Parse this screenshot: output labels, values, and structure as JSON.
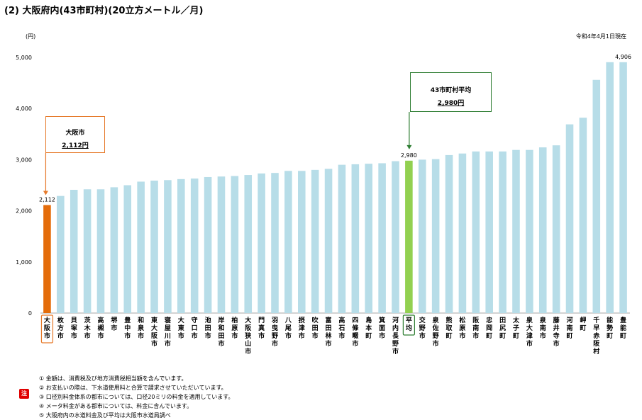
{
  "title": "(2) 大阪府内(43市町村)(20立方メートル／月)",
  "unit_label": "(円)",
  "as_of": "令和4年4月1日現在",
  "callout_osaka": {
    "line1": "大阪市",
    "line2": "2,112円"
  },
  "callout_avg": {
    "line1": "43市町村平均",
    "line2": "2,980円"
  },
  "notes_badge": "注",
  "notes": [
    "① 金額は、消費税及び地方消費税相当額を含んでいます。",
    "② お支払いの際は、下水道使用料と合算で請求させていただいています。",
    "③ 口径別料金体系の都市については、口径20ミリの料金を適用しています。",
    "④ メータ料金がある都市については、料金に含んでいます。",
    "⑤ 大阪府内の水道料金及び平均は大阪市水道局調べ"
  ],
  "colors": {
    "osaka": "#e46c0a",
    "average": "#92d050",
    "others": "#b7dde8",
    "osaka_box": "#e67a2b",
    "avg_box": "#2e7d32"
  },
  "chart_data": {
    "type": "bar",
    "title": "",
    "xlabel": "",
    "ylabel": "(円)",
    "ylim": [
      0,
      5000
    ],
    "yticks": [
      "0",
      "1,000",
      "2,000",
      "3,000",
      "4,000",
      "5,000"
    ],
    "grid": false,
    "categories": [
      "大阪市",
      "枚方市",
      "貝塚市",
      "茨木市",
      "高槻市",
      "堺市",
      "豊中市",
      "和泉市",
      "東大阪市",
      "寝屋川市",
      "大東市",
      "守口市",
      "池田市",
      "岸和田市",
      "柏原市",
      "大阪狭山市",
      "門真市",
      "羽曳野市",
      "八尾市",
      "摂津市",
      "吹田市",
      "富田林市",
      "高石市",
      "四條畷市",
      "島本町",
      "箕面市",
      "河内長野市",
      "平均",
      "交野市",
      "泉佐野市",
      "熊取町",
      "松原市",
      "阪南市",
      "忠岡町",
      "田尻町",
      "太子町",
      "泉大津市",
      "泉南市",
      "藤井寺市",
      "河南町",
      "岬町",
      "千早赤阪村",
      "能勢町",
      "豊能町"
    ],
    "values": [
      2112,
      2290,
      2410,
      2420,
      2420,
      2460,
      2500,
      2570,
      2590,
      2600,
      2620,
      2630,
      2660,
      2670,
      2680,
      2700,
      2730,
      2740,
      2780,
      2780,
      2800,
      2820,
      2900,
      2910,
      2920,
      2930,
      2970,
      2980,
      3000,
      3010,
      3090,
      3120,
      3160,
      3160,
      3160,
      3190,
      3190,
      3240,
      3280,
      3690,
      3820,
      4560,
      4906,
      4906
    ],
    "data_labels": {
      "0": "2,112",
      "27": "2,980",
      "43": "4,906"
    },
    "highlight": {
      "osaka": 0,
      "average": 27
    }
  }
}
